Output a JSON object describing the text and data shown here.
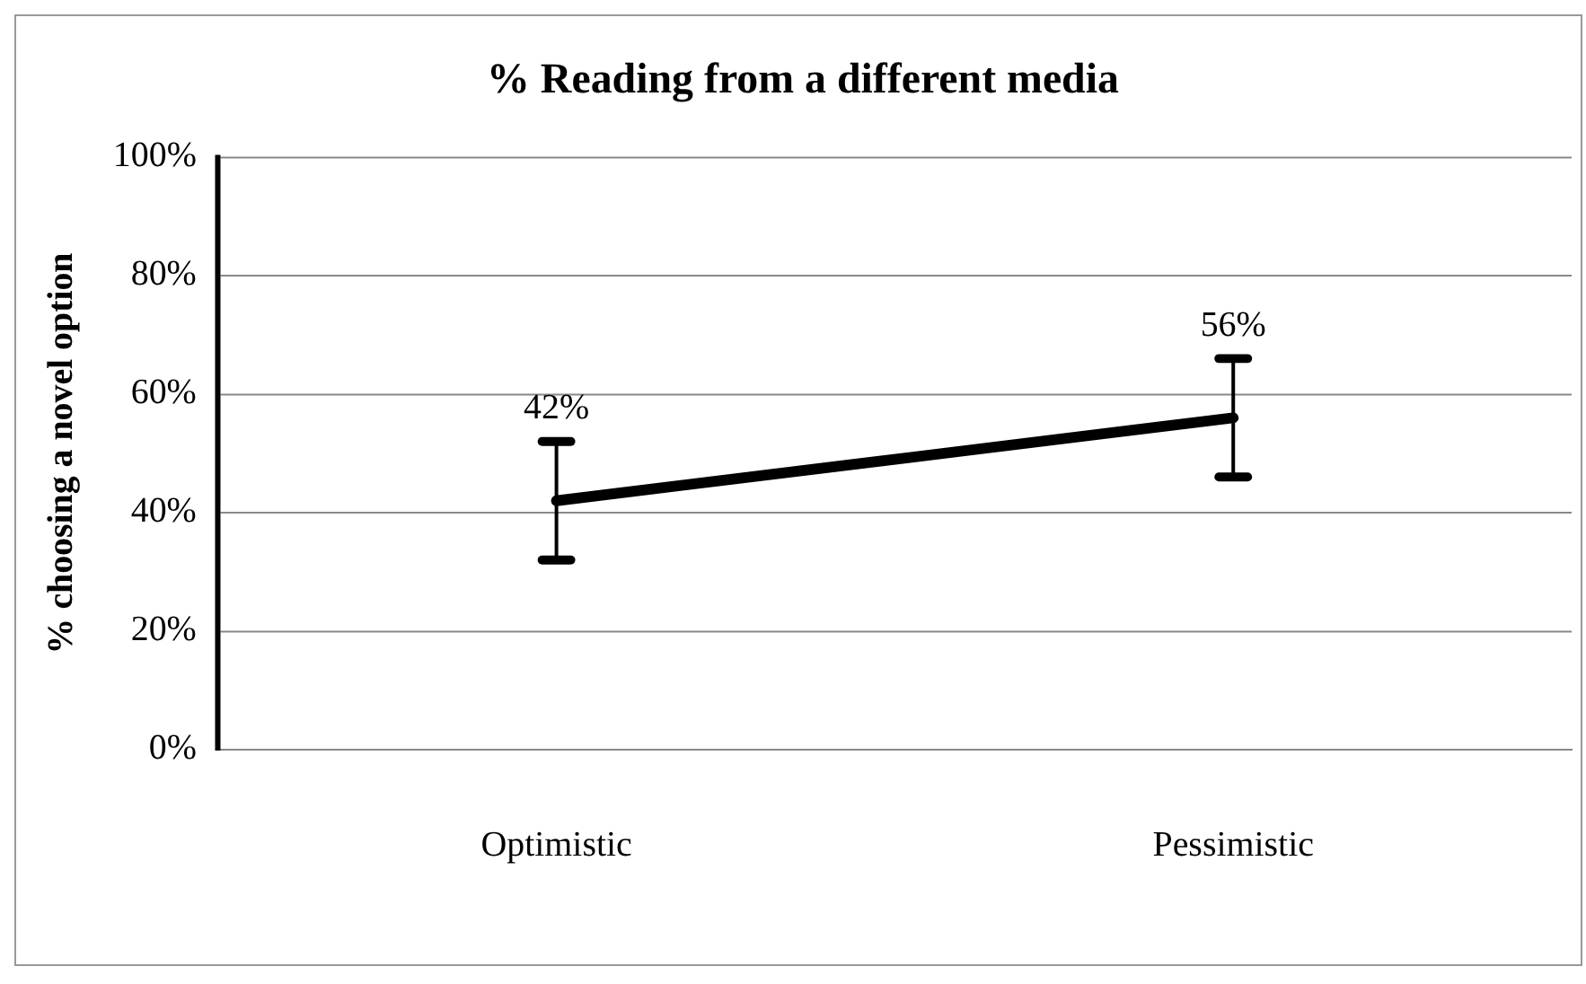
{
  "chart_data": {
    "type": "line",
    "title": "% Reading from a different media",
    "ylabel": "% choosing a novel option",
    "categories": [
      "Optimistic",
      "Pessimistic"
    ],
    "series": [
      {
        "color": "#000000",
        "values": [
          42,
          56
        ],
        "errors": [
          10,
          10
        ],
        "value_labels": [
          "42%",
          "56%"
        ]
      }
    ],
    "ylim": [
      0,
      100
    ],
    "yticks": [
      {
        "value": 0,
        "label": "0%"
      },
      {
        "value": 20,
        "label": "20%"
      },
      {
        "value": 40,
        "label": "40%"
      },
      {
        "value": 60,
        "label": "60%"
      },
      {
        "value": 80,
        "label": "80%"
      },
      {
        "value": 100,
        "label": "100%"
      }
    ],
    "grid": "y",
    "legend": false,
    "marker": "none",
    "line_style": "solid"
  }
}
